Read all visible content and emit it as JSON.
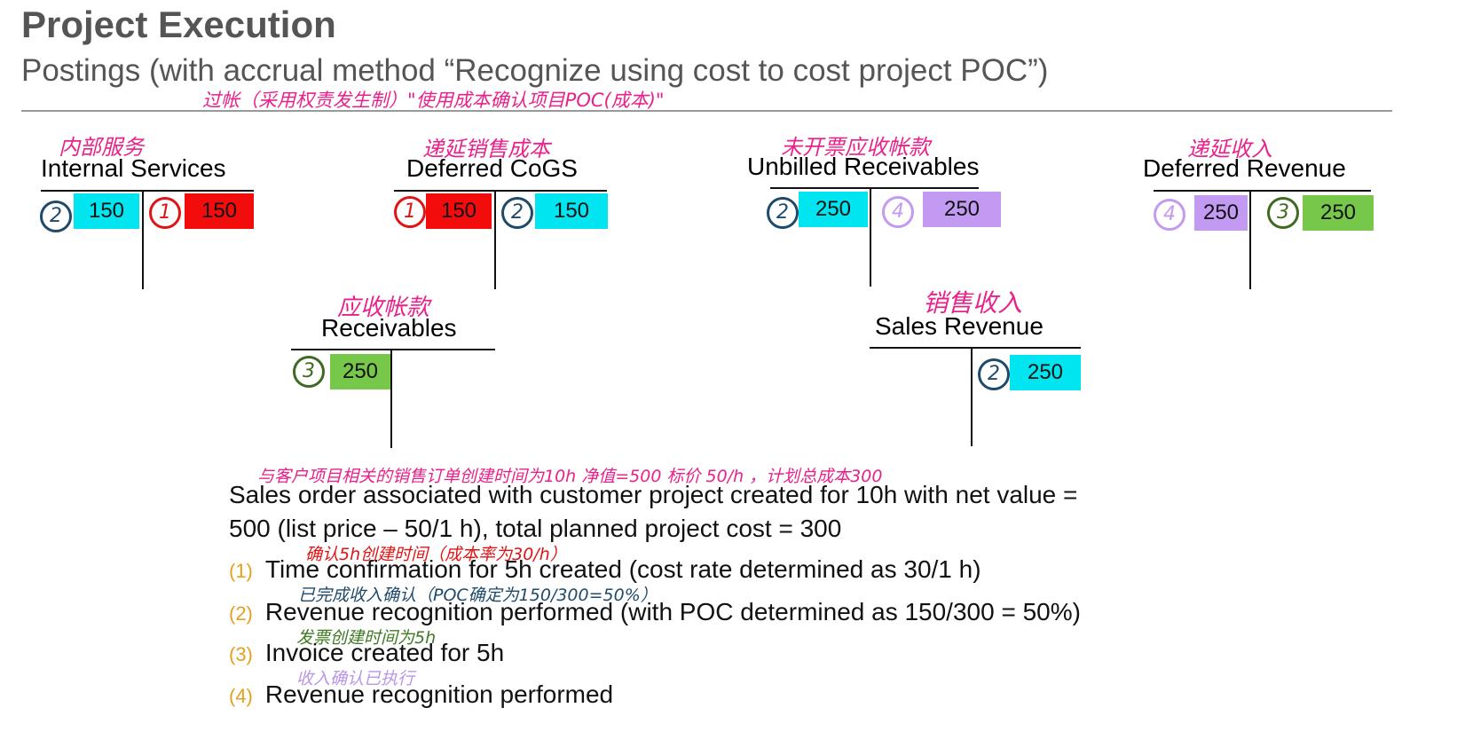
{
  "header": {
    "title": "Project Execution",
    "subtitle": "Postings (with accrual method “Recognize using cost to cost project POC”)",
    "subtitle_note": "过帐（采用权责发生制）\"使用成本确认项目POC(成本)\""
  },
  "colors": {
    "cyan": "#00e5ef",
    "red": "#f20c0c",
    "purple": "#c39af2",
    "green": "#77c84a",
    "pink": "#e8228a",
    "step_number": "#e6a020"
  },
  "accounts": {
    "internal_services": {
      "note": "内部服务",
      "title": "Internal Services",
      "left": {
        "step": "2",
        "value": "150"
      },
      "right": {
        "step": "1",
        "value": "150"
      }
    },
    "deferred_cogs": {
      "note": "递延销售成本",
      "title": "Deferred CoGS",
      "left": {
        "step": "1",
        "value": "150"
      },
      "right": {
        "step": "2",
        "value": "150"
      }
    },
    "unbilled_receivables": {
      "note": "未开票应收帐款",
      "title": "Unbilled Receivables",
      "left": {
        "step": "2",
        "value": "250"
      },
      "right": {
        "step": "4",
        "value": "250"
      }
    },
    "deferred_revenue": {
      "note": "递延收入",
      "title": "Deferred Revenue",
      "left": {
        "step": "4",
        "value": "250"
      },
      "right": {
        "step": "3",
        "value": "250"
      }
    },
    "receivables": {
      "note": "应收帐款",
      "title": "Receivables",
      "left": {
        "step": "3",
        "value": "250"
      }
    },
    "sales_revenue": {
      "note": "销售收入",
      "title": "Sales Revenue",
      "right": {
        "step": "2",
        "value": "250"
      }
    }
  },
  "description": {
    "note": "与客户项目相关的销售订单创建时间为10h 净值=500 标价 50/h ，计划总成本300",
    "line1": "Sales order associated with customer project created for 10h with net value =",
    "line2": "500 (list price – 50/1 h), total planned project cost = 300"
  },
  "steps": [
    {
      "num": "(1)",
      "text": "Time confirmation for 5h created (cost rate determined as 30/1 h)",
      "note": "确认5h创建时间（成本率为30/h）"
    },
    {
      "num": "(2)",
      "text": "Revenue recognition performed (with POC determined as 150/300 = 50%)",
      "note": "已完成收入确认（POC确定为150/300=50%）"
    },
    {
      "num": "(3)",
      "text": "Invoice created for 5h",
      "note": "发票创建时间为5h"
    },
    {
      "num": "(4)",
      "text": "Revenue recognition performed",
      "note": "收入确认已执行"
    }
  ]
}
